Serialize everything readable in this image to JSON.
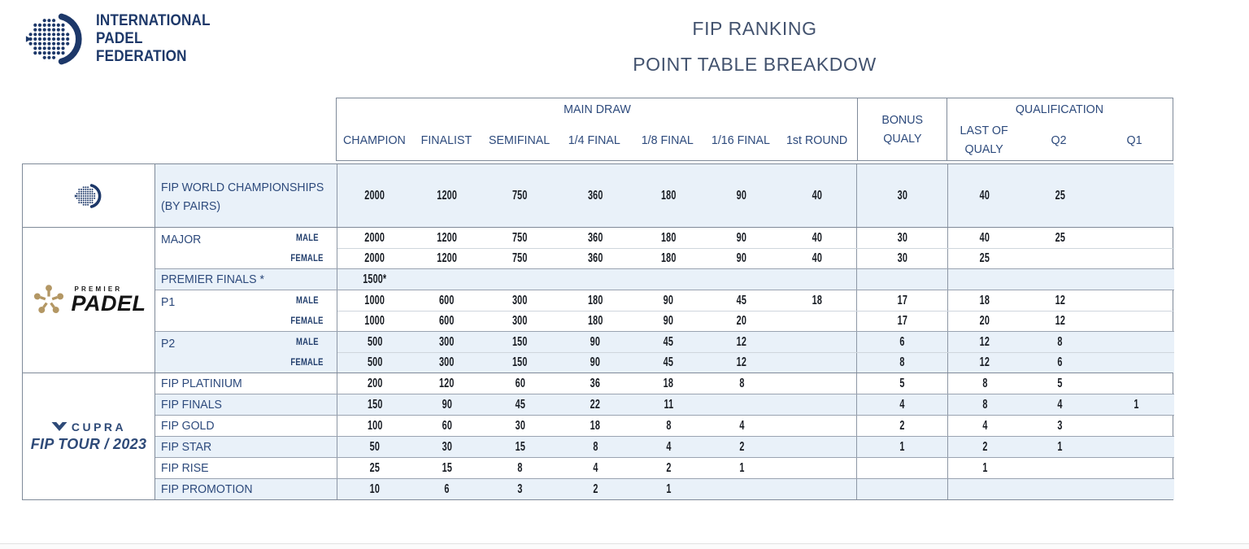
{
  "logos": {
    "ipf_lines": [
      "INTERNATIONAL",
      "PADEL",
      "FEDERATION"
    ],
    "premier": {
      "top": "PREMIER",
      "name": "PADEL"
    },
    "cupra": {
      "brand": "CUPRA",
      "tour": "FIP TOUR / 2023"
    }
  },
  "title": {
    "line1": "FIP RANKING",
    "line2": "POINT TABLE BREAKDOW"
  },
  "colors": {
    "navy": "#1d3869",
    "label_navy": "#2d4a7c",
    "number": "#191d24",
    "row_blue": "#e9f1f9",
    "border": "#7f8a99",
    "gold": "#b39764"
  },
  "header": {
    "main_draw": "MAIN DRAW",
    "bonus_qualy": [
      "BONUS",
      "QUALY"
    ],
    "qualification": "QUALIFICATION",
    "main_columns": [
      "CHAMPION",
      "FINALIST",
      "SEMIFINAL",
      "1/4 FINAL",
      "1/8 FINAL",
      "1/16 FINAL",
      "1st ROUND"
    ],
    "last_of_qualy": [
      "LAST OF",
      "QUALY"
    ],
    "q2": "Q2",
    "q1": "Q1"
  },
  "sections": [
    {
      "id": "fip",
      "groups": [
        {
          "label": "FIP WORLD CHAMPIONSHIPS (BY PAIRS)",
          "tall": true,
          "shaded": true,
          "rows": [
            {
              "sub": "",
              "values": [
                "2000",
                "1200",
                "750",
                "360",
                "180",
                "90",
                "40",
                "30",
                "40",
                "25",
                ""
              ]
            }
          ]
        }
      ]
    },
    {
      "id": "premier-padel",
      "groups": [
        {
          "label": "MAJOR",
          "shaded": false,
          "rows": [
            {
              "sub": "MALE",
              "values": [
                "2000",
                "1200",
                "750",
                "360",
                "180",
                "90",
                "40",
                "30",
                "40",
                "25",
                ""
              ]
            },
            {
              "sub": "FEMALE",
              "values": [
                "2000",
                "1200",
                "750",
                "360",
                "180",
                "90",
                "40",
                "30",
                "25",
                "",
                ""
              ]
            }
          ]
        },
        {
          "label": "PREMIER FINALS *",
          "shaded": true,
          "rows": [
            {
              "sub": "",
              "values": [
                "1500*",
                "",
                "",
                "",
                "",
                "",
                "",
                "",
                "",
                "",
                ""
              ]
            }
          ]
        },
        {
          "label": "P1",
          "shaded": false,
          "rows": [
            {
              "sub": "MALE",
              "values": [
                "1000",
                "600",
                "300",
                "180",
                "90",
                "45",
                "18",
                "17",
                "18",
                "12",
                ""
              ]
            },
            {
              "sub": "FEMALE",
              "values": [
                "1000",
                "600",
                "300",
                "180",
                "90",
                "20",
                "",
                "17",
                "20",
                "12",
                ""
              ]
            }
          ]
        },
        {
          "label": "P2",
          "shaded": true,
          "rows": [
            {
              "sub": "MALE",
              "values": [
                "500",
                "300",
                "150",
                "90",
                "45",
                "12",
                "",
                "6",
                "12",
                "8",
                ""
              ]
            },
            {
              "sub": "FEMALE",
              "values": [
                "500",
                "300",
                "150",
                "90",
                "45",
                "12",
                "",
                "8",
                "12",
                "6",
                ""
              ]
            }
          ]
        }
      ]
    },
    {
      "id": "cupra",
      "groups": [
        {
          "label": "FIP PLATINIUM",
          "shaded": false,
          "rows": [
            {
              "sub": "",
              "values": [
                "200",
                "120",
                "60",
                "36",
                "18",
                "8",
                "",
                "5",
                "8",
                "5",
                ""
              ]
            }
          ]
        },
        {
          "label": "FIP FINALS",
          "shaded": true,
          "rows": [
            {
              "sub": "",
              "values": [
                "150",
                "90",
                "45",
                "22",
                "11",
                "",
                "",
                "4",
                "8",
                "4",
                "1"
              ]
            }
          ]
        },
        {
          "label": "FIP GOLD",
          "shaded": false,
          "rows": [
            {
              "sub": "",
              "values": [
                "100",
                "60",
                "30",
                "18",
                "8",
                "4",
                "",
                "2",
                "4",
                "3",
                ""
              ]
            }
          ]
        },
        {
          "label": "FIP STAR",
          "shaded": true,
          "rows": [
            {
              "sub": "",
              "values": [
                "50",
                "30",
                "15",
                "8",
                "4",
                "2",
                "",
                "1",
                "2",
                "1",
                ""
              ]
            }
          ]
        },
        {
          "label": "FIP RISE",
          "shaded": false,
          "rows": [
            {
              "sub": "",
              "values": [
                "25",
                "15",
                "8",
                "4",
                "2",
                "1",
                "",
                "",
                "1",
                "",
                ""
              ]
            }
          ]
        },
        {
          "label": "FIP PROMOTION",
          "shaded": true,
          "rows": [
            {
              "sub": "",
              "values": [
                "10",
                "6",
                "3",
                "2",
                "1",
                "",
                "",
                "",
                "",
                "",
                ""
              ]
            }
          ]
        }
      ]
    }
  ]
}
